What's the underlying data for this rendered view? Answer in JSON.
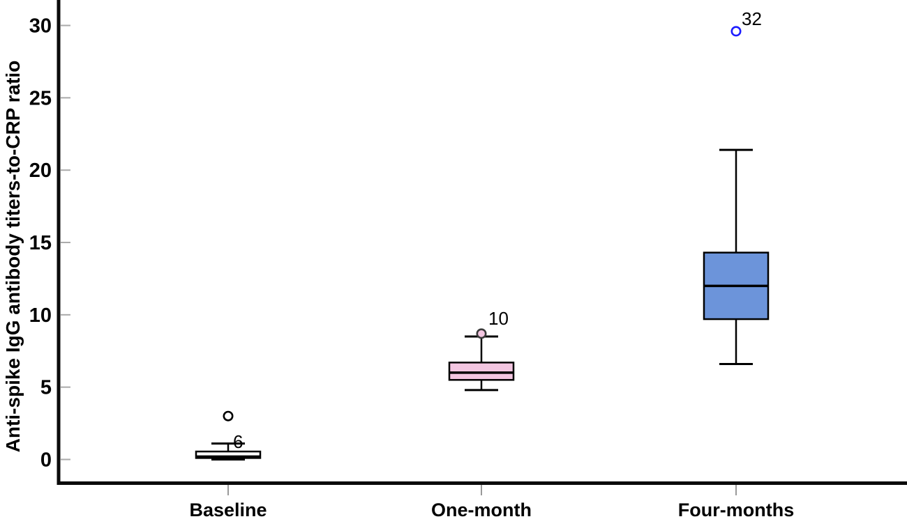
{
  "figure": {
    "background": "#ffffff"
  },
  "chart_data": {
    "type": "boxplot",
    "title": "",
    "xlabel": "",
    "ylabel": "Anti-spike IgG antibody titers-to-CRP ratio",
    "categories": [
      "Baseline",
      "One-month",
      "Four-months"
    ],
    "yticks": [
      0,
      5,
      10,
      15,
      20,
      25,
      30
    ],
    "ylim": [
      -1.6,
      31.8
    ],
    "grid": false,
    "legend": "none",
    "colors": {
      "axis": "#0a0a0a",
      "y_tick": "#aaaaaa",
      "x_tick": "#999999",
      "text": "#000000",
      "box_outline": "#000000",
      "baseline_fill": "#ffffff",
      "one_month_fill": "#f3c6e1",
      "four_months_fill": "#6c94da",
      "blue_outlier_stroke": "#1c1cff"
    },
    "series": [
      {
        "category": "Baseline",
        "fill": "#ffffff",
        "q1": 0.1,
        "median": 0.2,
        "q3": 0.55,
        "whisker_low": 0.0,
        "whisker_high": 1.1,
        "outliers": [
          {
            "value": 3.0,
            "label": "6",
            "marker": "open-circle",
            "stroke": "#000000",
            "fill": "none",
            "label_dx": 7,
            "label_dy": 46
          }
        ]
      },
      {
        "category": "One-month",
        "fill": "#f3c6e1",
        "q1": 5.5,
        "median": 6.0,
        "q3": 6.7,
        "whisker_low": 4.8,
        "whisker_high": 8.5,
        "outliers": [
          {
            "value": 8.7,
            "label": "10",
            "marker": "filled-circle",
            "stroke": "#3a3a3a",
            "fill": "#f3c6e1",
            "label_dx": 10,
            "label_dy": -13
          }
        ]
      },
      {
        "category": "Four-months",
        "fill": "#6c94da",
        "q1": 9.7,
        "median": 12.0,
        "q3": 14.3,
        "whisker_low": 6.6,
        "whisker_high": 21.4,
        "outliers": [
          {
            "value": 29.6,
            "label": "32",
            "marker": "open-circle",
            "stroke": "#1c1cff",
            "fill": "none",
            "label_dx": 8,
            "label_dy": -9
          }
        ]
      }
    ]
  }
}
